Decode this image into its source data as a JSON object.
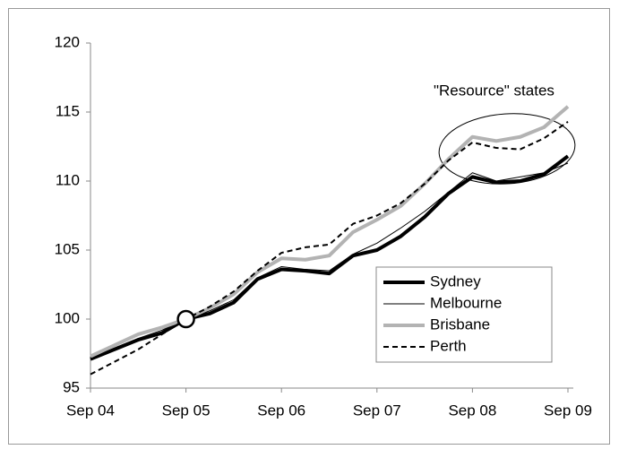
{
  "chart_data": {
    "type": "line",
    "annotation": "\"Resource\" states",
    "categories": [
      "Sep 04",
      null,
      null,
      null,
      "Sep 05",
      null,
      null,
      null,
      "Sep 06",
      null,
      null,
      null,
      "Sep 07",
      null,
      null,
      null,
      "Sep 08",
      null,
      null,
      null,
      "Sep 09"
    ],
    "ylim": [
      95,
      120
    ],
    "yticks": [
      95,
      100,
      105,
      110,
      115,
      120
    ],
    "grid": false,
    "legend": "lower-right",
    "series": [
      {
        "name": "Sydney",
        "color": "#000000",
        "line_width": 4,
        "dash": false,
        "values": [
          97.1,
          97.8,
          98.5,
          99.0,
          100,
          100.4,
          101.2,
          102.9,
          103.6,
          103.5,
          103.3,
          104.6,
          105.0,
          106.0,
          107.4,
          109.1,
          110.3,
          109.9,
          110.0,
          110.5,
          111.8
        ]
      },
      {
        "name": "Melbourne",
        "color": "#000000",
        "line_width": 1,
        "dash": false,
        "values": [
          97.1,
          97.9,
          98.6,
          99.2,
          100,
          100.6,
          101.4,
          103.0,
          103.8,
          103.6,
          103.5,
          104.7,
          105.5,
          106.6,
          107.8,
          109.2,
          110.6,
          110.0,
          110.3,
          110.6,
          111.3
        ]
      },
      {
        "name": "Brisbane",
        "color": "#b3b3b3",
        "line_width": 4,
        "dash": false,
        "values": [
          97.3,
          98.1,
          98.9,
          99.4,
          100,
          100.8,
          101.8,
          103.4,
          104.4,
          104.3,
          104.6,
          106.3,
          107.2,
          108.2,
          109.8,
          111.6,
          113.2,
          112.9,
          113.2,
          113.9,
          115.4
        ]
      },
      {
        "name": "Perth",
        "color": "#000000",
        "line_width": 2,
        "dash": true,
        "values": [
          96.0,
          96.9,
          97.8,
          98.9,
          100,
          100.9,
          102.0,
          103.5,
          104.8,
          105.2,
          105.4,
          106.9,
          107.5,
          108.4,
          109.8,
          111.5,
          112.8,
          112.4,
          112.3,
          113.1,
          114.3
        ]
      }
    ]
  }
}
